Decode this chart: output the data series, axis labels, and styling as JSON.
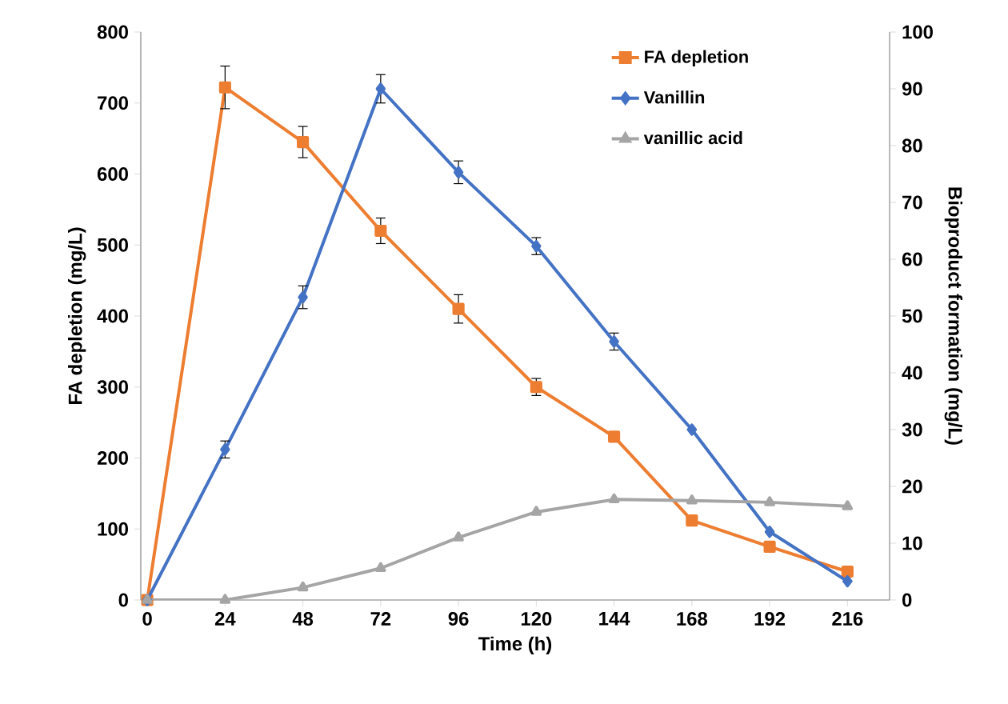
{
  "chart_data": {
    "type": "line",
    "xlabel": "Time (h)",
    "ylabel": "FA depletion (mg/L)",
    "y2label": "Bioproduct formation (mg/L)",
    "x": [
      0,
      24,
      48,
      72,
      96,
      120,
      144,
      168,
      192,
      216
    ],
    "xlim": [
      -2,
      229
    ],
    "xticks": [
      0,
      24,
      48,
      72,
      96,
      120,
      144,
      168,
      192,
      216
    ],
    "ylim": [
      0,
      800
    ],
    "yticks": [
      0,
      100,
      200,
      300,
      400,
      500,
      600,
      700,
      800
    ],
    "y2lim": [
      0,
      100
    ],
    "y2ticks": [
      0,
      10,
      20,
      30,
      40,
      50,
      60,
      70,
      80,
      90,
      100
    ],
    "grid": false,
    "legend": "top right",
    "line_style": "solid",
    "series": [
      {
        "name": "FA depletion",
        "color": "#ed7d31",
        "marker": "square",
        "values": [
          0,
          722,
          645,
          520,
          410,
          300,
          230,
          112,
          75,
          40
        ],
        "errors": [
          null,
          30,
          22,
          18,
          20,
          12,
          null,
          null,
          null,
          null
        ]
      },
      {
        "name": "Vanillin",
        "color": "#4472c4",
        "marker": "diamond",
        "axis": "y2",
        "values": [
          0,
          26.5,
          53.3,
          90,
          75.3,
          62.3,
          45.5,
          30,
          12,
          3.3
        ],
        "errors": [
          null,
          1.5,
          2,
          2.5,
          2,
          1.5,
          1.5,
          null,
          null,
          null
        ]
      },
      {
        "name": "vanillic acid",
        "color": "#a5a5a5",
        "marker": "triangle",
        "axis": "y2",
        "values": [
          0,
          0,
          2.2,
          5.6,
          11,
          15.5,
          17.7,
          17.5,
          17.2,
          16.5
        ]
      }
    ]
  }
}
